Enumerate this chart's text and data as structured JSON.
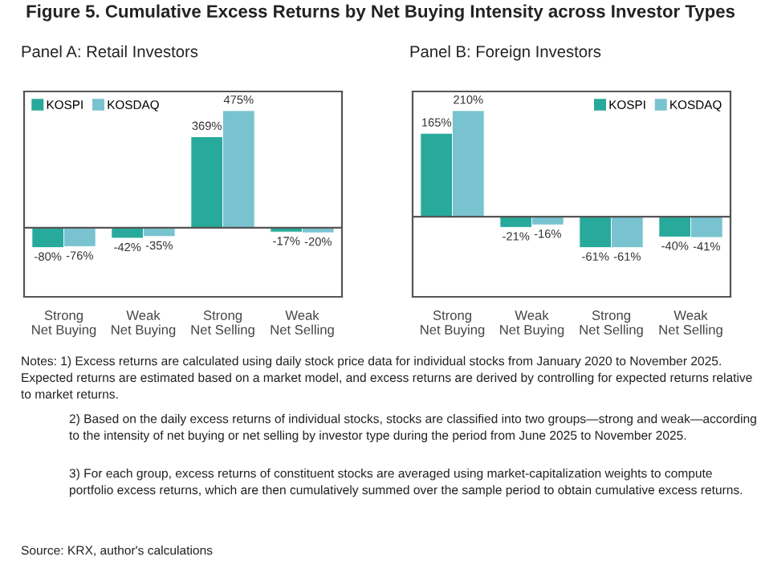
{
  "chart_data": [
    {
      "type": "bar",
      "title": "Figure 5. Cumulative Excess Returns by Net Buying Intensity across Investor Types",
      "subtitle": "Panel A: Retail Investors",
      "categories": [
        "Strong\nNet Buying",
        "Weak\nNet Buying",
        "Strong\nNet Selling",
        "Weak\nNet Selling"
      ],
      "series": [
        {
          "name": "KOSPI",
          "color": "#27a99b",
          "values": [
            -80,
            -42,
            369,
            -17
          ],
          "value_labels": [
            "-80%",
            "-42%",
            "369%",
            "-17%"
          ]
        },
        {
          "name": "KOSDAQ",
          "color": "#79c3d0",
          "values": [
            -76,
            -35,
            475,
            -20
          ],
          "value_labels": [
            "-76%",
            "-35%",
            "475%",
            "-20%"
          ]
        }
      ],
      "legend": "top left",
      "grid": false,
      "annotations": [
        "Notes: 1) Excess returns are calculated using daily stock price data for individual stocks from January 2020 to November 2025. Expected returns are estimated based on a market model, and excess returns are derived by controlling for expected returns relative to market returns.",
        "2) Based on the daily excess returns of individual stocks, stocks are classified into two groups—strong and weak—according to the intensity of net buying or net selling by investor type during the period from June 2025 to November 2025.",
        "3) For each group, excess returns of constituent stocks are averaged using market-capitalization weights to compute portfolio excess returns, which are then cumulatively summed over the sample period to obtain cumulative excess returns.",
        "Source: KRX, author's calculations"
      ]
    },
    {
      "type": "bar",
      "subtitle": "Panel B: Foreign Investors",
      "categories": [
        "Strong\nNet Buying",
        "Weak\nNet Buying",
        "Strong\nNet Selling",
        "Weak\nNet Selling"
      ],
      "series": [
        {
          "name": "KOSPI",
          "color": "#27a99b",
          "values": [
            165,
            -21,
            -61,
            -40
          ],
          "value_labels": [
            "165%",
            "-21%",
            "-61%",
            "-40%"
          ]
        },
        {
          "name": "KOSDAQ",
          "color": "#79c3d0",
          "values": [
            210,
            -16,
            -61,
            -41
          ],
          "value_labels": [
            "210%",
            "-16%",
            "-61%",
            "-41%"
          ]
        }
      ],
      "legend": "top right",
      "grid": false
    }
  ]
}
